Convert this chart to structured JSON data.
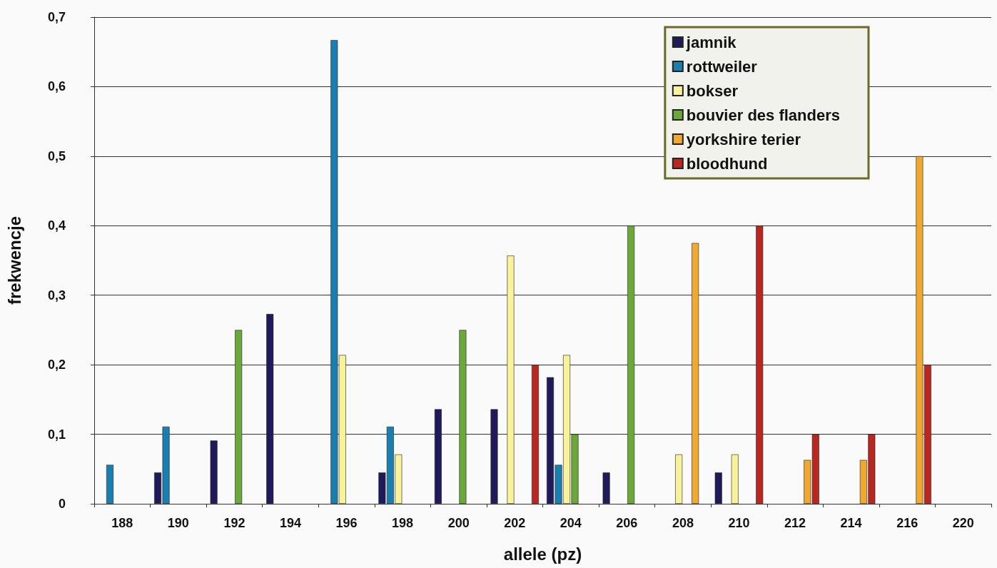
{
  "chart_data": {
    "type": "bar",
    "xlabel": "allele (pz)",
    "ylabel": "frekwencje",
    "categories": [
      "188",
      "190",
      "192",
      "194",
      "196",
      "198",
      "200",
      "202",
      "204",
      "206",
      "208",
      "210",
      "212",
      "214",
      "216",
      "220"
    ],
    "series": [
      {
        "name": "jamnik",
        "color": "#1f1a5a",
        "values": [
          null,
          0.045,
          0.091,
          0.273,
          null,
          0.045,
          0.136,
          0.136,
          0.182,
          0.045,
          null,
          0.045,
          null,
          null,
          null,
          null
        ]
      },
      {
        "name": "rottweiler",
        "color": "#1a7fb0",
        "values": [
          0.056,
          0.111,
          null,
          null,
          0.667,
          0.111,
          null,
          null,
          0.056,
          null,
          null,
          null,
          null,
          null,
          null,
          null
        ]
      },
      {
        "name": "bokser",
        "color": "#f8f29a",
        "values": [
          null,
          null,
          null,
          null,
          0.214,
          0.071,
          null,
          0.357,
          0.214,
          null,
          0.071,
          0.071,
          null,
          null,
          null,
          null
        ]
      },
      {
        "name": "bouvier des flanders",
        "color": "#6aa83a",
        "values": [
          null,
          null,
          0.25,
          null,
          null,
          null,
          0.25,
          null,
          0.1,
          0.4,
          null,
          null,
          null,
          null,
          null,
          null
        ]
      },
      {
        "name": "yorkshire terier",
        "color": "#f0a830",
        "values": [
          null,
          null,
          null,
          null,
          null,
          null,
          null,
          null,
          null,
          null,
          0.375,
          null,
          0.063,
          0.063,
          0.5,
          null
        ]
      },
      {
        "name": "bloodhund",
        "color": "#b8281e",
        "values": [
          null,
          null,
          null,
          null,
          null,
          null,
          null,
          0.2,
          null,
          null,
          null,
          0.4,
          0.1,
          0.1,
          0.2,
          null
        ]
      }
    ],
    "ylim": [
      0,
      0.7
    ],
    "yticks": [
      0,
      {
        "value": 0.1,
        "label": "0,1"
      },
      {
        "value": 0.2,
        "label": "0,2"
      },
      {
        "value": 0.3,
        "label": "0,3"
      },
      {
        "value": 0.4,
        "label": "0,4"
      },
      {
        "value": 0.5,
        "label": "0,5"
      },
      {
        "value": 0.6,
        "label": "0,6"
      },
      {
        "value": 0.7,
        "label": "0,7"
      }
    ],
    "grid": "y",
    "legend": "top right"
  }
}
